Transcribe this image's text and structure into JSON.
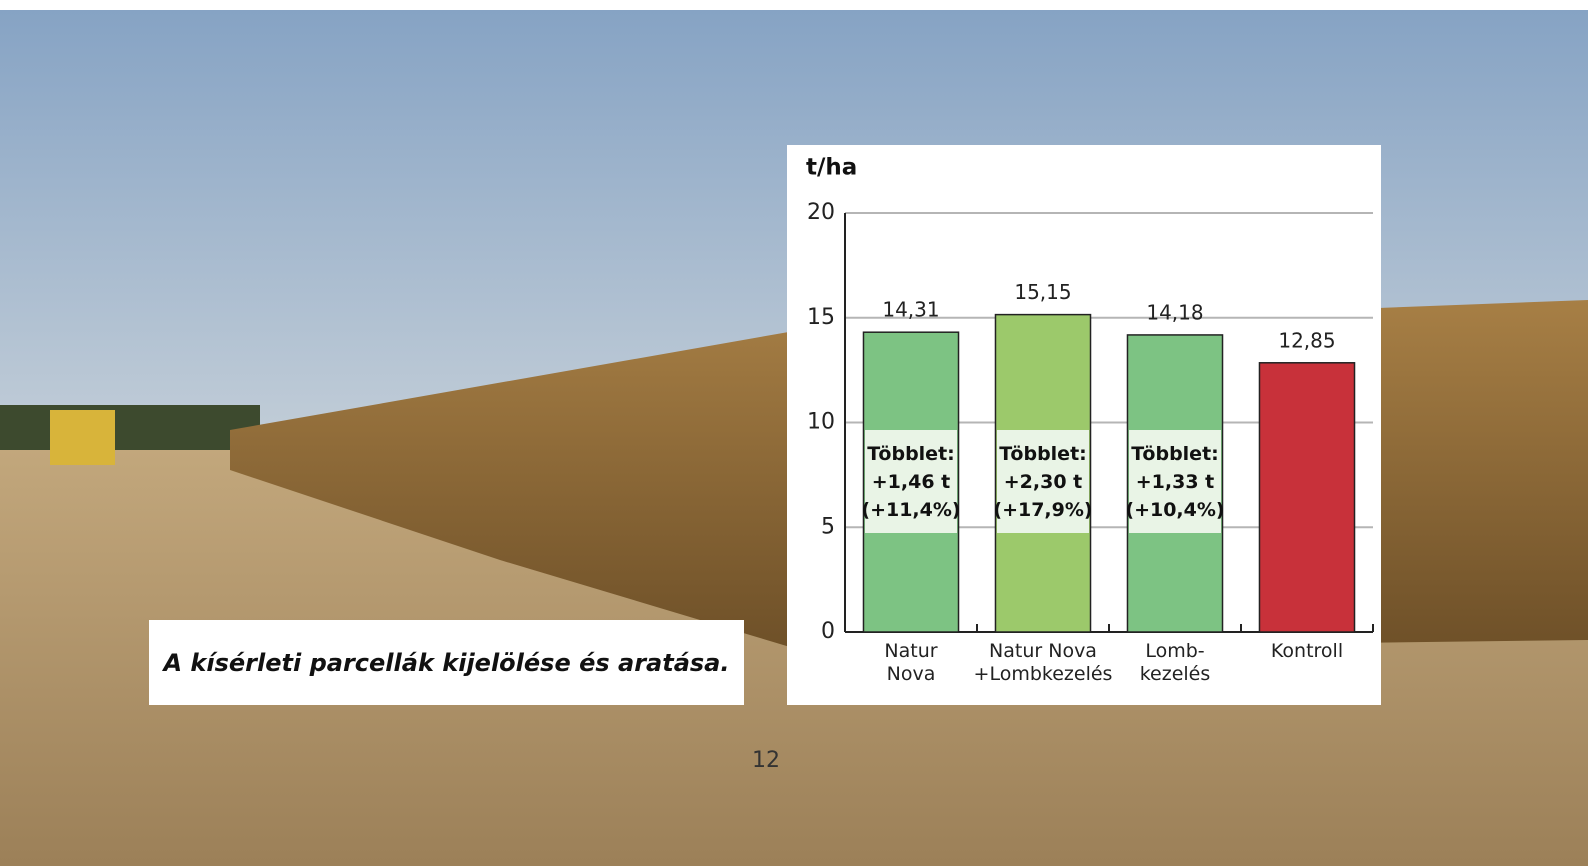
{
  "chart_data": {
    "type": "bar",
    "y_label": "t/ha",
    "categories": [
      "Natur\nNova",
      "Natur Nova\n+Lombkezelés",
      "Lomb-\nkezelés",
      "Kontroll"
    ],
    "values": [
      14.31,
      15.15,
      14.18,
      12.85
    ],
    "value_labels": [
      "14,31",
      "15,15",
      "14,18",
      "12,85"
    ],
    "colors": [
      "#7dc383",
      "#9cc96b",
      "#7dc383",
      "#c8313a"
    ],
    "annotations": [
      "Többlet:\n+1,46 t\n(+11,4%)",
      "Többlet:\n+2,30 t\n(+17,9%)",
      "Többlet:\n+1,33 t\n(+10,4%)"
    ],
    "ylim": [
      0,
      20
    ],
    "yticks": [
      0,
      5,
      10,
      15,
      20
    ],
    "grid": true
  },
  "caption": "A kísérleti parcellák kijelölése és aratása.",
  "page_number": "12"
}
